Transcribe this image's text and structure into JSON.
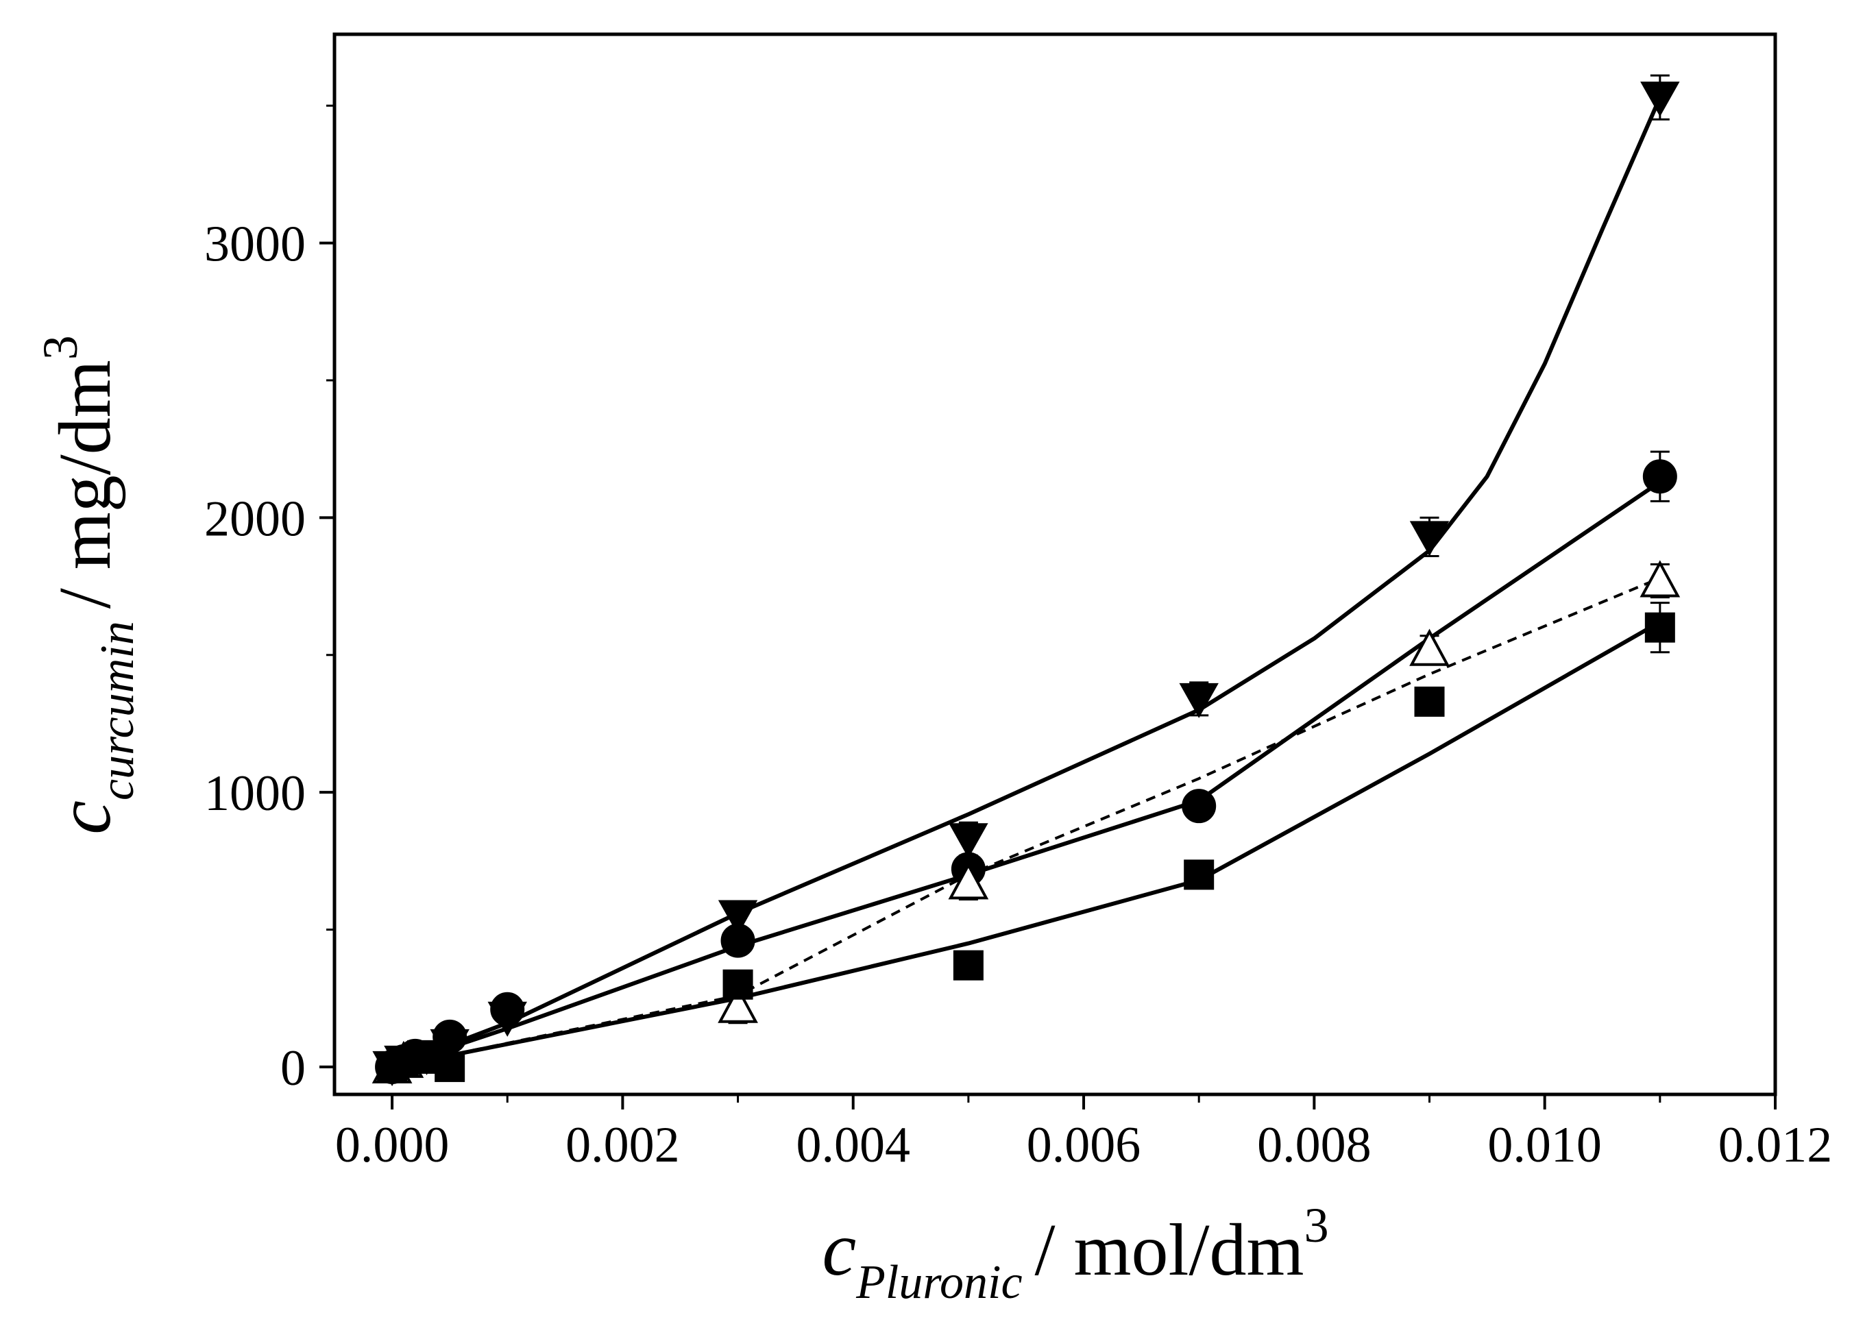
{
  "chart_data": {
    "type": "line",
    "title": "",
    "xlabel": {
      "symbol": "c",
      "subscript": "Pluronic",
      "unit": "/ mol/dm",
      "superscript": "3"
    },
    "ylabel": {
      "symbol": "c",
      "subscript": "curcumin",
      "unit": "/ mg/dm",
      "superscript": "3"
    },
    "xlim": [
      -0.0005,
      0.012
    ],
    "ylim": [
      -100,
      3760
    ],
    "xticks": [
      0,
      0.002,
      0.004,
      0.006,
      0.008,
      0.01,
      0.012
    ],
    "xtick_labels": [
      "0.000",
      "0.002",
      "0.004",
      "0.006",
      "0.008",
      "0.010",
      "0.012"
    ],
    "yticks": [
      0,
      1000,
      2000,
      3000
    ],
    "ytick_labels": [
      "0",
      "1000",
      "2000",
      "3000"
    ],
    "series": [
      {
        "name": "filled-down-triangle",
        "marker": "triangle-down",
        "filled": true,
        "line": "solid",
        "x": [
          0,
          0.0001,
          0.0003,
          0.0005,
          0.001,
          0.003,
          0.005,
          0.007,
          0.009,
          0.011
        ],
        "y": [
          0,
          20,
          40,
          80,
          180,
          550,
          830,
          1340,
          1930,
          3530
        ],
        "err": [
          0,
          0,
          0,
          0,
          0,
          50,
          60,
          60,
          70,
          80
        ]
      },
      {
        "name": "filled-circle",
        "marker": "circle",
        "filled": true,
        "line": "solid",
        "x": [
          0,
          0.0001,
          0.0002,
          0.0005,
          0.001,
          0.003,
          0.005,
          0.007,
          0.011
        ],
        "y": [
          0,
          20,
          40,
          110,
          210,
          460,
          720,
          950,
          2150
        ],
        "err": [
          0,
          0,
          0,
          0,
          0,
          0,
          0,
          0,
          90
        ]
      },
      {
        "name": "open-triangle",
        "marker": "triangle-up",
        "filled": false,
        "line": "dashed",
        "x": [
          0,
          0.0001,
          0.003,
          0.005,
          0.009,
          0.011
        ],
        "y": [
          0,
          20,
          220,
          670,
          1520,
          1770
        ],
        "err": [
          0,
          0,
          60,
          60,
          50,
          60
        ]
      },
      {
        "name": "filled-square",
        "marker": "square",
        "filled": true,
        "line": "solid",
        "x": [
          0,
          0.0001,
          0.0003,
          0.0005,
          0.003,
          0.005,
          0.007,
          0.009,
          0.011
        ],
        "y": [
          0,
          20,
          30,
          0,
          300,
          370,
          700,
          1330,
          1600
        ],
        "err": [
          0,
          0,
          0,
          0,
          0,
          0,
          0,
          50,
          90
        ]
      }
    ],
    "fit_lines": [
      {
        "name": "fit-triangle-down",
        "style": "solid",
        "points": [
          [
            0,
            0
          ],
          [
            0.001,
            160
          ],
          [
            0.003,
            560
          ],
          [
            0.005,
            920
          ],
          [
            0.007,
            1300
          ],
          [
            0.008,
            1560
          ],
          [
            0.009,
            1880
          ],
          [
            0.0095,
            2150
          ],
          [
            0.01,
            2560
          ],
          [
            0.0105,
            3050
          ],
          [
            0.011,
            3530
          ]
        ]
      },
      {
        "name": "fit-circle",
        "style": "solid",
        "points": [
          [
            0,
            0
          ],
          [
            0.001,
            140
          ],
          [
            0.003,
            440
          ],
          [
            0.005,
            700
          ],
          [
            0.007,
            970
          ],
          [
            0.009,
            1560
          ],
          [
            0.011,
            2130
          ]
        ]
      },
      {
        "name": "fit-open-triangle",
        "style": "dashed",
        "points": [
          [
            0,
            0
          ],
          [
            0.003,
            260
          ],
          [
            0.005,
            700
          ],
          [
            0.007,
            1050
          ],
          [
            0.009,
            1430
          ],
          [
            0.011,
            1780
          ]
        ]
      },
      {
        "name": "fit-square",
        "style": "solid",
        "points": [
          [
            0,
            0
          ],
          [
            0.003,
            250
          ],
          [
            0.005,
            450
          ],
          [
            0.007,
            680
          ],
          [
            0.009,
            1140
          ],
          [
            0.011,
            1620
          ]
        ]
      }
    ]
  }
}
